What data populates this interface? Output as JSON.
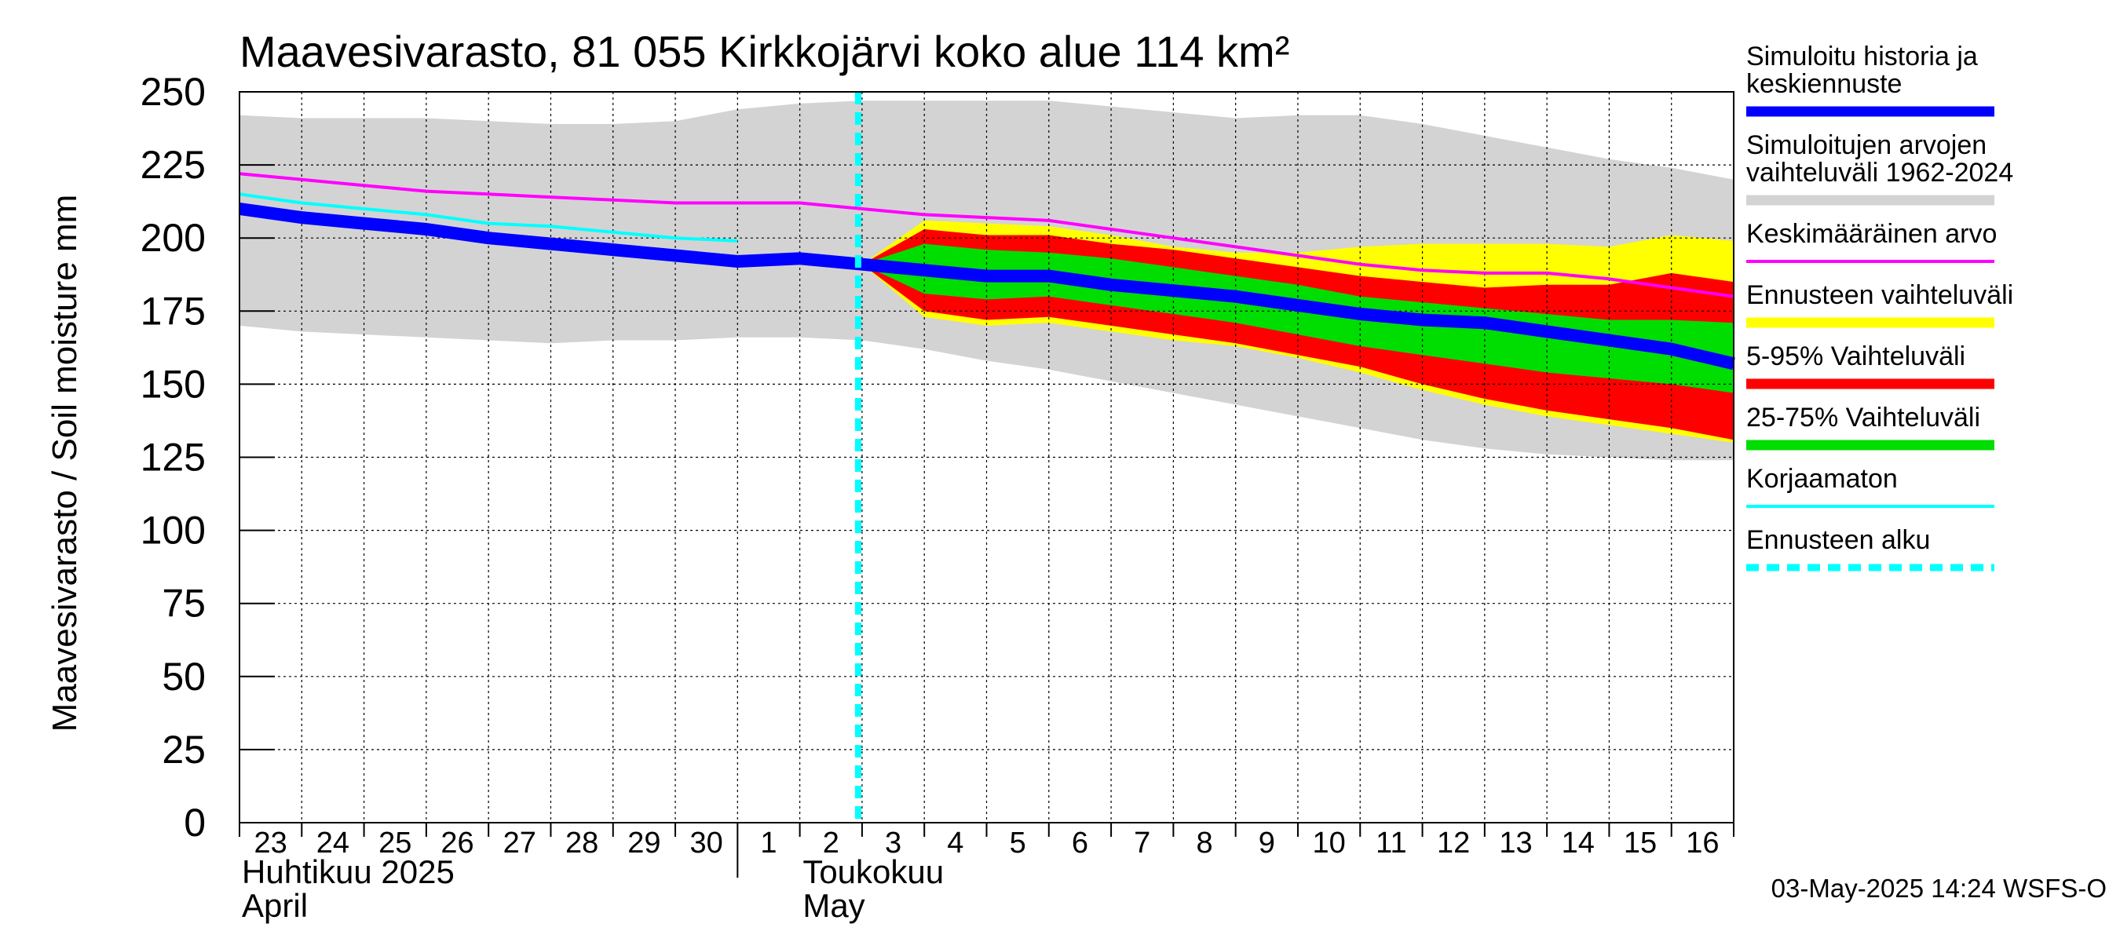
{
  "chart_data": {
    "type": "area",
    "title": "Maavesivarasto, 81 055 Kirkkojärvi koko alue 114 km²",
    "ylabel": "Maavesivarasto / Soil moisture   mm",
    "ylim": [
      0,
      250
    ],
    "yticks": [
      0,
      25,
      50,
      75,
      100,
      125,
      150,
      175,
      200,
      225,
      250
    ],
    "x_tick_labels": [
      "23",
      "24",
      "25",
      "26",
      "27",
      "28",
      "29",
      "30",
      "1",
      "2",
      "3",
      "4",
      "5",
      "6",
      "7",
      "8",
      "9",
      "10",
      "11",
      "12",
      "13",
      "14",
      "15",
      "16"
    ],
    "x_range": [
      "2025-04-23",
      "2025-05-17"
    ],
    "month_labels": [
      {
        "fi": "Huhtikuu  2025",
        "en": "April",
        "start": "2025-04-23"
      },
      {
        "fi": "Toukokuu",
        "en": "May",
        "start": "2025-05-01"
      }
    ],
    "grid": true,
    "legend_position": "right",
    "forecast_start": "2025-05-03",
    "x": [
      "2025-04-23",
      "2025-04-24",
      "2025-04-25",
      "2025-04-26",
      "2025-04-27",
      "2025-04-28",
      "2025-04-29",
      "2025-04-30",
      "2025-05-01",
      "2025-05-02",
      "2025-05-03",
      "2025-05-04",
      "2025-05-05",
      "2025-05-06",
      "2025-05-07",
      "2025-05-08",
      "2025-05-09",
      "2025-05-10",
      "2025-05-11",
      "2025-05-12",
      "2025-05-13",
      "2025-05-14",
      "2025-05-15",
      "2025-05-16",
      "2025-05-17"
    ],
    "bands": [
      {
        "name": "Simuloitujen arvojen vaihteluväli 1962-2024",
        "color": "#d3d3d3",
        "upper": [
          242,
          241,
          241,
          241,
          240,
          239,
          239,
          240,
          244,
          246,
          247,
          247,
          247,
          247,
          245,
          243,
          241,
          242,
          242,
          239,
          235,
          231,
          227,
          224,
          220
        ],
        "lower": [
          170,
          168,
          167,
          166,
          165,
          164,
          165,
          165,
          166,
          166,
          165,
          162,
          158,
          155,
          151,
          147,
          143,
          139,
          135,
          131,
          128,
          126,
          125,
          124,
          124
        ]
      },
      {
        "name": "Ennusteen vaihteluväli",
        "color": "#ffff00",
        "start": "2025-05-03",
        "upper": [
          191,
          206,
          205,
          204,
          201,
          197,
          195,
          195,
          197,
          198,
          198,
          198,
          197,
          201,
          199
        ],
        "lower": [
          191,
          173,
          170,
          171,
          168,
          165,
          163,
          159,
          154,
          148,
          143,
          139,
          136,
          133,
          130
        ]
      },
      {
        "name": "5-95% Vaihteluväli",
        "color": "#ff0000",
        "start": "2025-05-03",
        "upper": [
          191,
          203,
          201,
          201,
          198,
          196,
          193,
          190,
          187,
          185,
          183,
          184,
          184,
          188,
          185
        ],
        "lower": [
          191,
          175,
          172,
          173,
          170,
          167,
          164,
          160,
          156,
          150,
          145,
          141,
          138,
          135,
          131
        ]
      },
      {
        "name": "25-75% Vaihteluväli",
        "color": "#00dd00",
        "start": "2025-05-03",
        "upper": [
          191,
          198,
          196,
          195,
          193,
          190,
          187,
          184,
          180,
          178,
          176,
          174,
          172,
          172,
          171
        ],
        "lower": [
          191,
          181,
          179,
          180,
          177,
          174,
          171,
          167,
          163,
          160,
          157,
          154,
          152,
          150,
          147
        ]
      }
    ],
    "series": [
      {
        "name": "Keskimääräinen arvo",
        "color": "#ff00ff",
        "values": [
          222,
          220,
          218,
          216,
          215,
          214,
          213,
          212,
          212,
          212,
          210,
          208,
          207,
          206,
          203,
          200,
          197,
          194,
          191,
          189,
          188,
          188,
          186,
          183,
          180
        ]
      },
      {
        "name": "Korjaamaton",
        "color": "#00ffff",
        "values": [
          215,
          212,
          210,
          208,
          205,
          204,
          202,
          200,
          199,
          null,
          null,
          null,
          null,
          null,
          null,
          null,
          null,
          null,
          null,
          null,
          null,
          null,
          null,
          null,
          null
        ]
      },
      {
        "name": "Simuloitu historia ja keskiennuste",
        "color": "#0000ff",
        "values": [
          210,
          207,
          205,
          203,
          200,
          198,
          196,
          194,
          192,
          193,
          191,
          189,
          187,
          187,
          184,
          182,
          180,
          177,
          174,
          172,
          171,
          168,
          165,
          162,
          157
        ]
      }
    ],
    "legend": [
      {
        "label": "Simuloitu historia ja keskiennuste",
        "color": "#0000ff",
        "style": "thick"
      },
      {
        "label": "Simuloitujen arvojen vaihteluväli 1962-2024",
        "color": "#d3d3d3",
        "style": "thick"
      },
      {
        "label": "Keskimääräinen arvo",
        "color": "#ff00ff",
        "style": "thin"
      },
      {
        "label": "Ennusteen vaihteluväli",
        "color": "#ffff00",
        "style": "thick"
      },
      {
        "label": "5-95% Vaihteluväli",
        "color": "#ff0000",
        "style": "thick"
      },
      {
        "label": "25-75% Vaihteluväli",
        "color": "#00dd00",
        "style": "thick"
      },
      {
        "label": "Korjaamaton",
        "color": "#00ffff",
        "style": "thin"
      },
      {
        "label": "Ennusteen alku",
        "color": "#00ffff",
        "style": "dashed"
      }
    ],
    "footer": "03-May-2025 14:24 WSFS-O"
  }
}
